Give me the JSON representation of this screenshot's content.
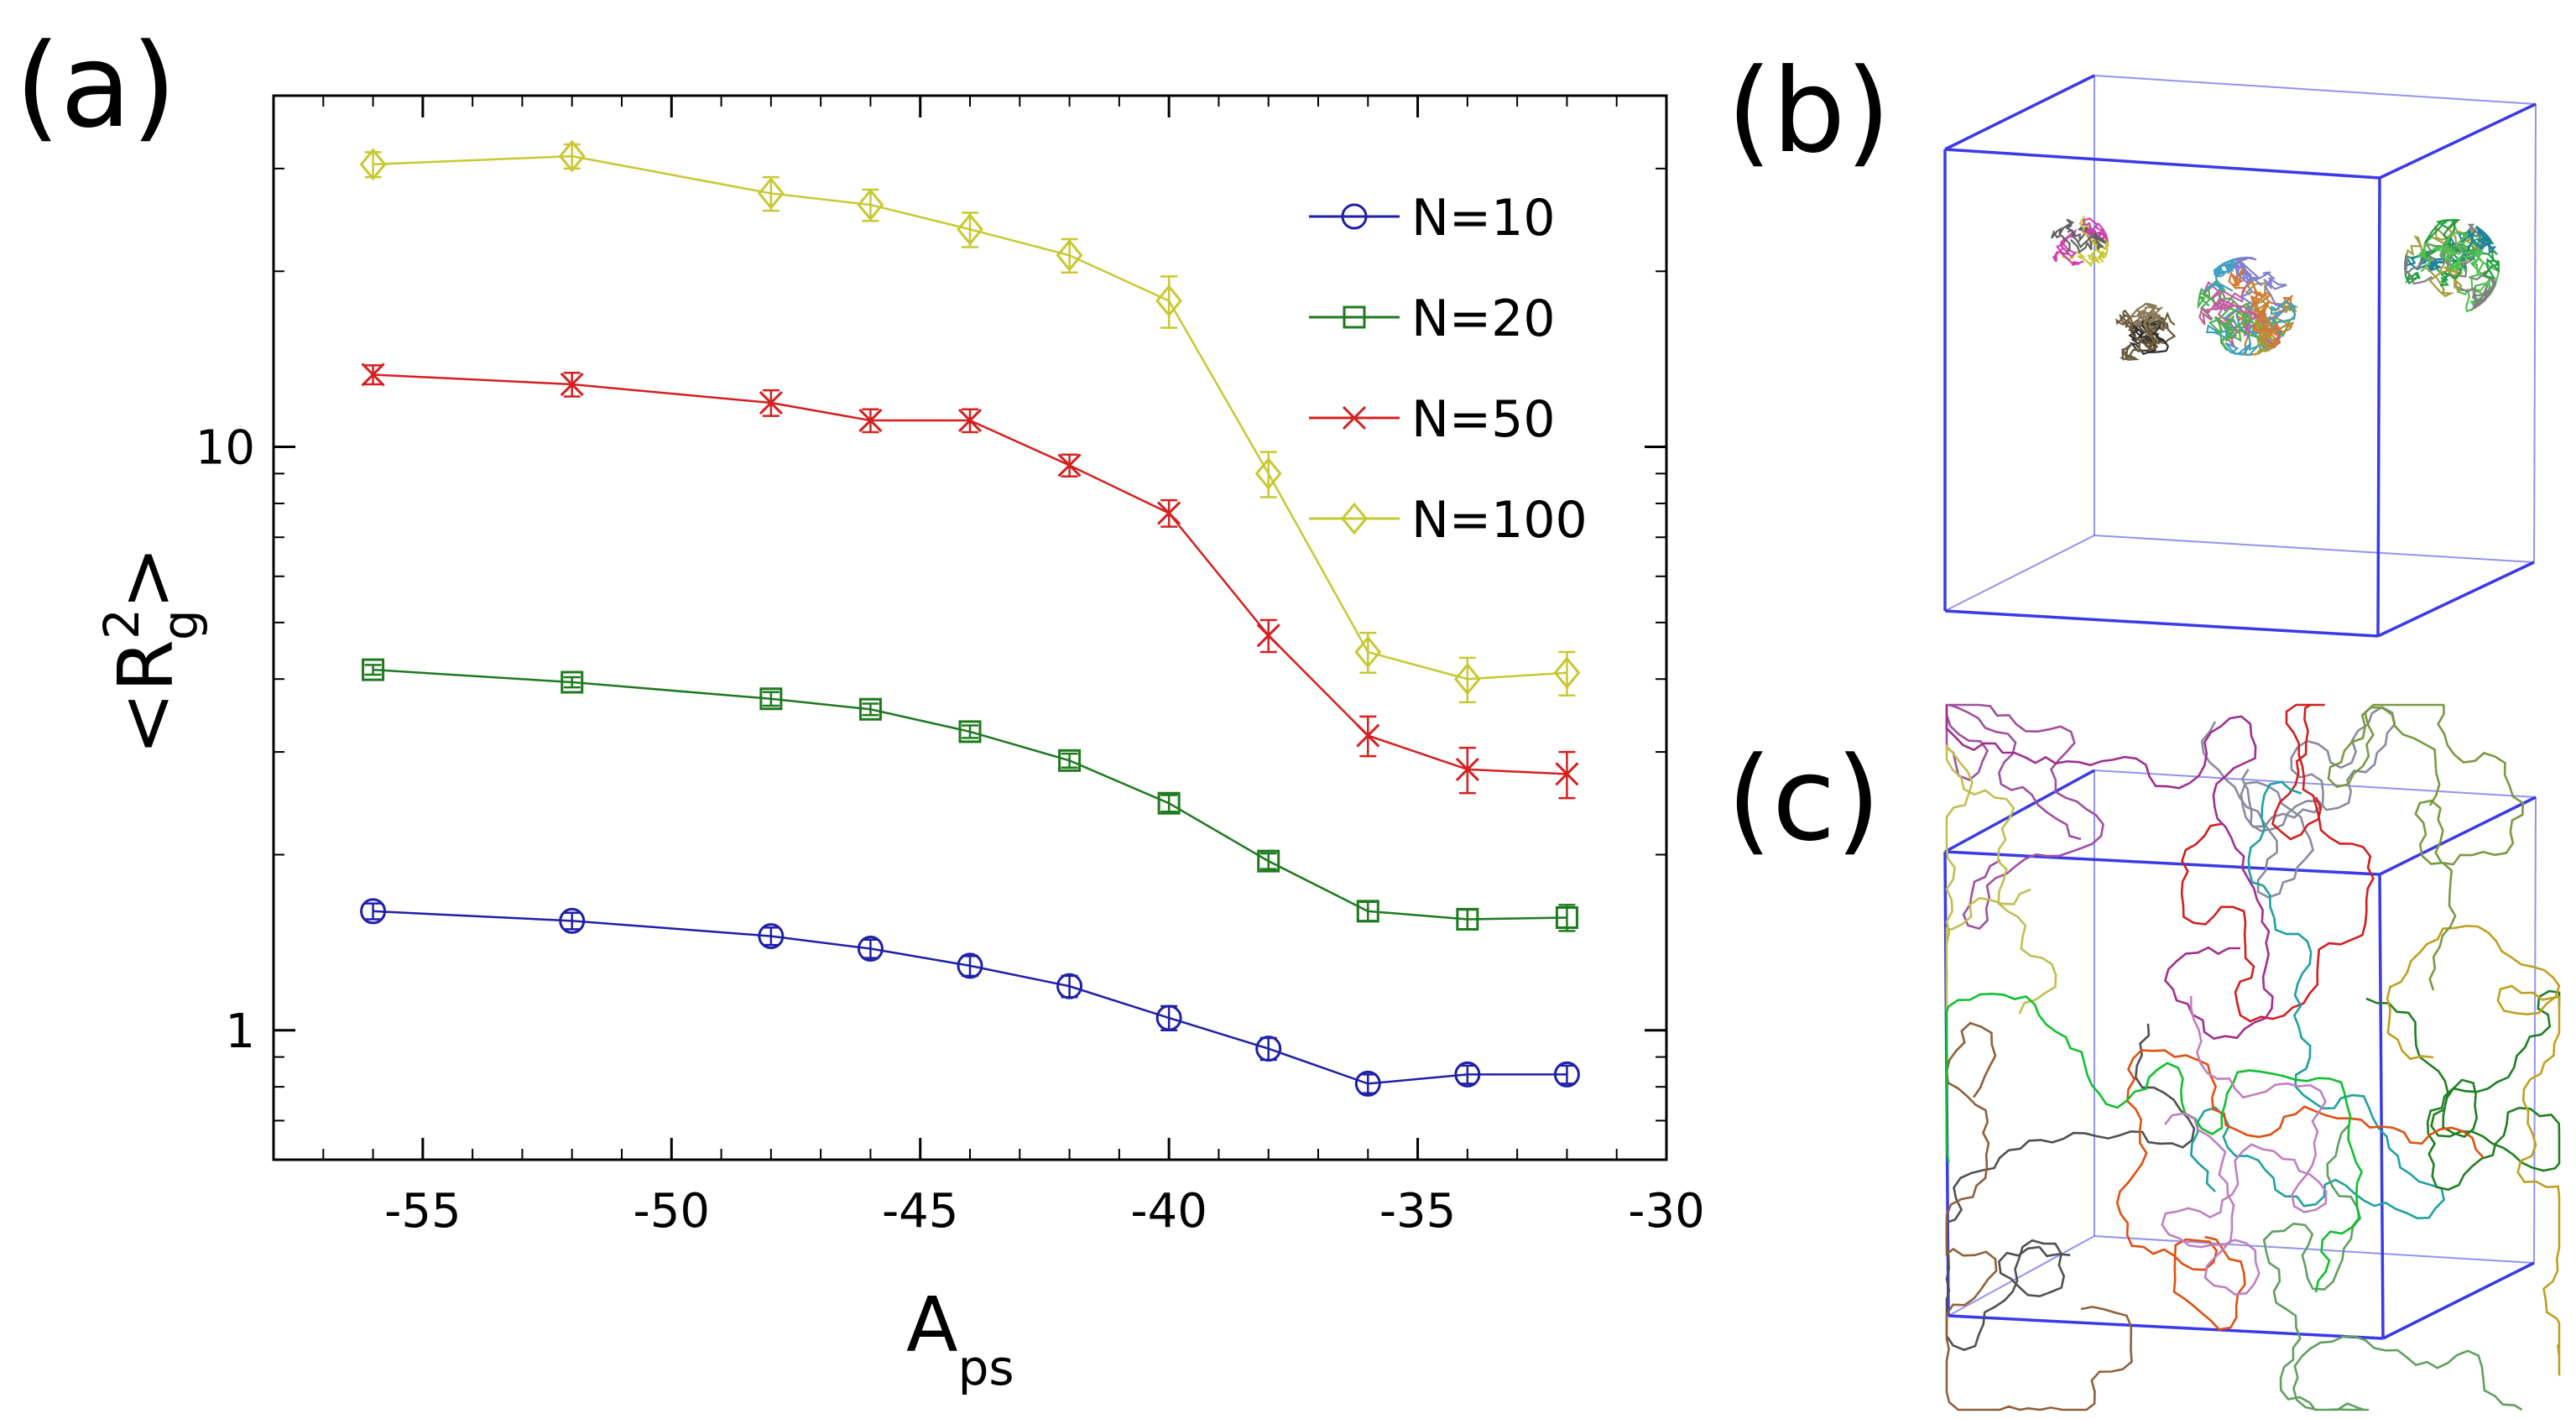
{
  "panels": {
    "a": "(a)",
    "b": "(b)",
    "c": "(c)"
  },
  "colors": {
    "N10": "#1f1fa8",
    "N20": "#1e7a1e",
    "N50": "#d42020",
    "N100": "#c8c832",
    "box": "#3a3ae6"
  },
  "chart_data": {
    "type": "line",
    "title": "",
    "xlabel": "A",
    "xlabel_sub": "ps",
    "ylabel": "<R",
    "ylabel_sup": "2",
    "ylabel_sub": "g",
    "ylabel_end": ">",
    "yscale": "log",
    "xlim": [
      -58,
      -30
    ],
    "ylim": [
      0.6,
      40
    ],
    "xticks": [
      -55,
      -50,
      -45,
      -40,
      -35,
      -30
    ],
    "xtick_labels": [
      "-55",
      "-50",
      "-45",
      "-40",
      "-35",
      "-30"
    ],
    "yticks": [
      1,
      10
    ],
    "ytick_labels": [
      "1",
      "10"
    ],
    "legend_position": "top-right",
    "x": [
      -56,
      -52,
      -48,
      -46,
      -44,
      -42,
      -40,
      -38,
      -36,
      -34,
      -32
    ],
    "series": [
      {
        "name": "N=10",
        "marker": "circle",
        "values": [
          1.6,
          1.54,
          1.45,
          1.38,
          1.29,
          1.19,
          1.05,
          0.93,
          0.81,
          0.84,
          0.84
        ],
        "errors": [
          0.05,
          0.05,
          0.05,
          0.05,
          0.05,
          0.05,
          0.05,
          0.04,
          0.03,
          0.03,
          0.03
        ]
      },
      {
        "name": "N=20",
        "marker": "square",
        "values": [
          4.15,
          3.95,
          3.7,
          3.55,
          3.25,
          2.9,
          2.45,
          1.95,
          1.6,
          1.55,
          1.56
        ],
        "errors": [
          0.08,
          0.08,
          0.1,
          0.08,
          0.08,
          0.08,
          0.08,
          0.06,
          0.06,
          0.06,
          0.08
        ]
      },
      {
        "name": "N=50",
        "marker": "x",
        "values": [
          13.3,
          12.8,
          11.9,
          11.1,
          11.1,
          9.3,
          7.7,
          4.75,
          3.2,
          2.8,
          2.75
        ],
        "errors": [
          0.5,
          0.6,
          0.6,
          0.5,
          0.5,
          0.4,
          0.4,
          0.3,
          0.25,
          0.25,
          0.25
        ]
      },
      {
        "name": "N=100",
        "marker": "diamond",
        "values": [
          30.5,
          31.5,
          27.2,
          26.0,
          23.6,
          21.3,
          17.8,
          9.0,
          4.45,
          4.0,
          4.1
        ],
        "errors": [
          1.5,
          1.5,
          1.8,
          1.6,
          1.6,
          1.4,
          1.8,
          0.8,
          0.35,
          0.35,
          0.35
        ]
      }
    ]
  }
}
